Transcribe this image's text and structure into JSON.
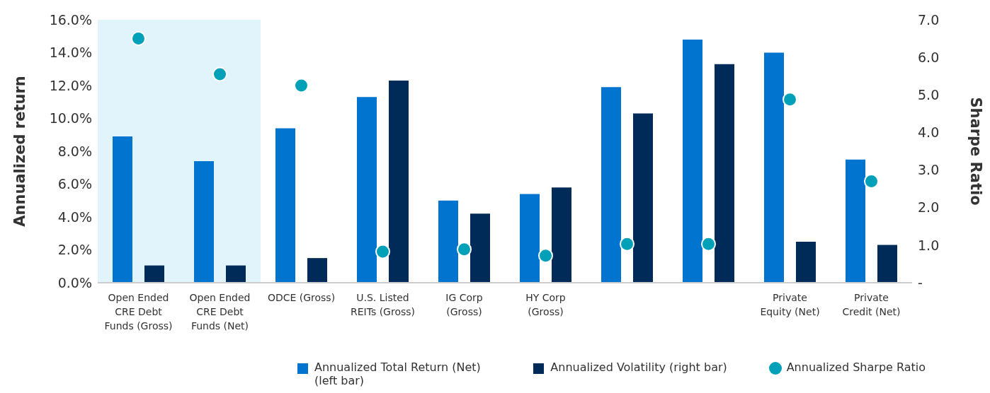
{
  "chart_data": {
    "type": "bar",
    "categories": [
      "Open Ended CRE Debt Funds (Gross)",
      "Open Ended CRE Debt Funds (Net)",
      "ODCE (Gross)",
      "U.S. Listed REITs (Gross)",
      "IG Corp (Gross)",
      "HY Corp (Gross)",
      null,
      null,
      "Private Equity (Net)",
      "Private Credit (Net)"
    ],
    "ylabel": "Annualized return",
    "y2label": "Sharpe Ratio",
    "series": [
      {
        "name": "Annualized Total Return (Net) (left bar)",
        "color": "#0074cf",
        "values": [
          8.9,
          7.4,
          9.4,
          11.3,
          5.0,
          5.4,
          11.9,
          14.8,
          14.0,
          7.5
        ]
      },
      {
        "name": "Annualized Volatility (right bar)",
        "color": "#002b59",
        "values": [
          1.05,
          1.05,
          1.5,
          12.3,
          4.2,
          5.8,
          10.3,
          13.3,
          2.5,
          2.3
        ]
      },
      {
        "name": "Annualized Sharpe Ratio",
        "type": "scatter",
        "axis": "y2",
        "marker": "circle",
        "color": "#00a0b8",
        "values": [
          6.5,
          5.55,
          5.25,
          0.83,
          0.89,
          0.72,
          1.03,
          1.03,
          4.88,
          2.7
        ]
      }
    ],
    "ylim": [
      0,
      16
    ],
    "yticks": [
      {
        "value": 0,
        "label": "0.0%"
      },
      {
        "value": 2,
        "label": "2.0%"
      },
      {
        "value": 4,
        "label": "4.0%"
      },
      {
        "value": 6,
        "label": "6.0%"
      },
      {
        "value": 8,
        "label": "8.0%"
      },
      {
        "value": 10,
        "label": "10.0%"
      },
      {
        "value": 12,
        "label": "12.0%"
      },
      {
        "value": 14,
        "label": "14.0%"
      },
      {
        "value": 16,
        "label": "16.0%"
      }
    ],
    "y2lim": [
      0,
      7
    ],
    "y2ticks": [
      {
        "value": 0,
        "label": "-"
      },
      {
        "value": 1,
        "label": "1.0"
      },
      {
        "value": 2,
        "label": "2.0"
      },
      {
        "value": 3,
        "label": "3.0"
      },
      {
        "value": 4,
        "label": "4.0"
      },
      {
        "value": 5,
        "label": "5.0"
      },
      {
        "value": 6,
        "label": "6.0"
      },
      {
        "value": 7,
        "label": "7.0"
      }
    ],
    "bands": [
      {
        "axis": "x",
        "from": "Open Ended CRE Debt Funds (Gross)",
        "to": "Open Ended CRE Debt Funds (Net)",
        "color": "#e1f3fb"
      }
    ],
    "grid": false,
    "legend": "bottom"
  }
}
